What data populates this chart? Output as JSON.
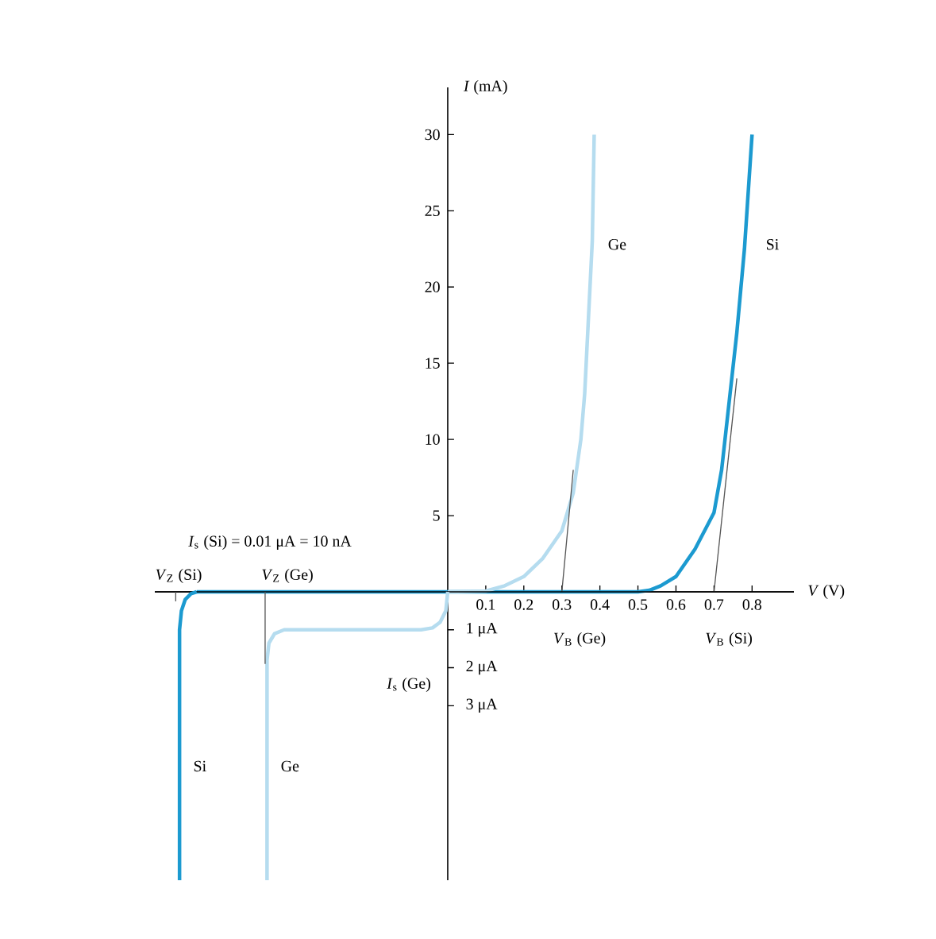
{
  "chart_data": [
    {
      "type": "line",
      "xlabel": "*V* (V)",
      "ylabel": "*I* (mA)",
      "xlim": [
        -0.77,
        0.91
      ],
      "ylim": [
        0,
        33.1
      ],
      "xticks": [
        0.1,
        0.2,
        0.3,
        0.4,
        0.5,
        0.6,
        0.7,
        0.8
      ],
      "yticks": [
        5,
        10,
        15,
        20,
        25,
        30
      ],
      "marker": "none",
      "series": [
        {
          "name": "Si",
          "color": "#1c9ad0",
          "x": [
            -0.66,
            0.0,
            0.5,
            0.53,
            0.56,
            0.6,
            0.65,
            0.7,
            0.72,
            0.74,
            0.76,
            0.78,
            0.8
          ],
          "values": [
            0.0,
            0.0,
            0.0,
            0.1,
            0.4,
            1.0,
            2.8,
            5.2,
            8.0,
            12.5,
            17.0,
            22.5,
            30.0
          ]
        },
        {
          "name": "Ge",
          "color": "#b5dcef",
          "x": [
            0.0,
            0.1,
            0.15,
            0.2,
            0.25,
            0.3,
            0.33,
            0.35,
            0.36,
            0.37,
            0.38,
            0.385
          ],
          "values": [
            0.0,
            0.05,
            0.4,
            1.0,
            2.2,
            4.0,
            6.5,
            10.0,
            13.0,
            18.0,
            23.0,
            30.0
          ]
        },
        {
          "color": "#555555",
          "x": [
            0.3,
            0.33
          ],
          "values": [
            0.0,
            8.0
          ]
        },
        {
          "color": "#555555",
          "x": [
            0.7,
            0.76
          ],
          "values": [
            0.0,
            14.0
          ]
        }
      ],
      "annotations": [
        "*I*$_{s}$ (Si) = 0.01 μA = 10 nA",
        "*V*$_{Z}$ (Si)",
        "*V*$_{Z}$ (Ge)"
      ]
    },
    {
      "type": "line",
      "xlim": [
        -0.77,
        0.91
      ],
      "ylim": [
        -7.6,
        0
      ],
      "tick_labels": "y",
      "yticks": [
        {
          "value": -3,
          "label": "3 μA"
        },
        {
          "value": -2,
          "label": "2 μA"
        },
        {
          "value": -1,
          "label": "1 μA"
        }
      ],
      "marker": "none",
      "series": [
        {
          "name": "Si",
          "color": "#1c9ad0",
          "x": [
            -0.705,
            -0.705,
            -0.7,
            -0.69,
            -0.675,
            -0.66
          ],
          "values": [
            -7.6,
            -1.0,
            -0.5,
            -0.2,
            -0.05,
            0.0
          ]
        },
        {
          "name": "Ge",
          "color": "#b5dcef",
          "x": [
            -0.475,
            -0.475,
            -0.47,
            -0.455,
            -0.43,
            -0.07,
            -0.04,
            -0.02,
            -0.005,
            0.0
          ],
          "values": [
            -7.6,
            -1.8,
            -1.35,
            -1.1,
            -1.0,
            -1.0,
            -0.95,
            -0.8,
            -0.5,
            0.0
          ]
        },
        {
          "color": "#555555",
          "x": [
            -0.715,
            -0.715
          ],
          "values": [
            0.0,
            -0.25
          ]
        },
        {
          "color": "#555555",
          "x": [
            -0.48,
            -0.48
          ],
          "values": [
            0.0,
            -1.9
          ]
        }
      ],
      "annotations": [
        "*I*$_{s}$ (Ge)",
        "*V*$_{B}$ (Ge)",
        "*V*$_{B}$ (Si)"
      ]
    }
  ]
}
